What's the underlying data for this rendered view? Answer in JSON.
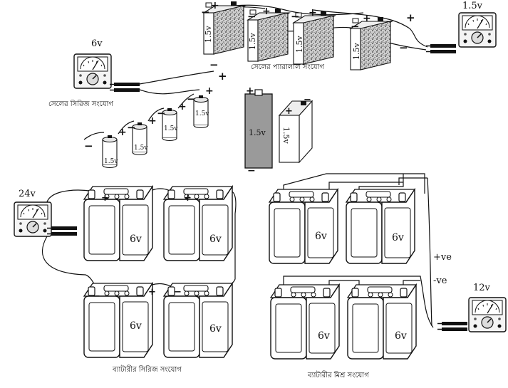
{
  "parallel_cells": {
    "caption": "সেলের প্যারালাল সংযোগ",
    "cell_label": "1.5v",
    "meter_value": "1.5v"
  },
  "series_cells": {
    "caption": "সেলের সিরিজ সংযোগ",
    "cell_label": "1.5v",
    "meter_value": "6v"
  },
  "single_cell": {
    "label": "1.5v"
  },
  "battery_series": {
    "caption": "ব্যাটারীর সিরিজ সংযোগ",
    "battery_label": "6v",
    "meter_value": "24v"
  },
  "battery_mixed": {
    "caption": "ব্যাটারীর মিশ্র সংযোগ",
    "battery_label": "6v",
    "meter_value": "12v",
    "positive_label": "+ve",
    "negative_label": "-ve"
  },
  "symbols": {
    "plus": "+",
    "minus": "−"
  }
}
